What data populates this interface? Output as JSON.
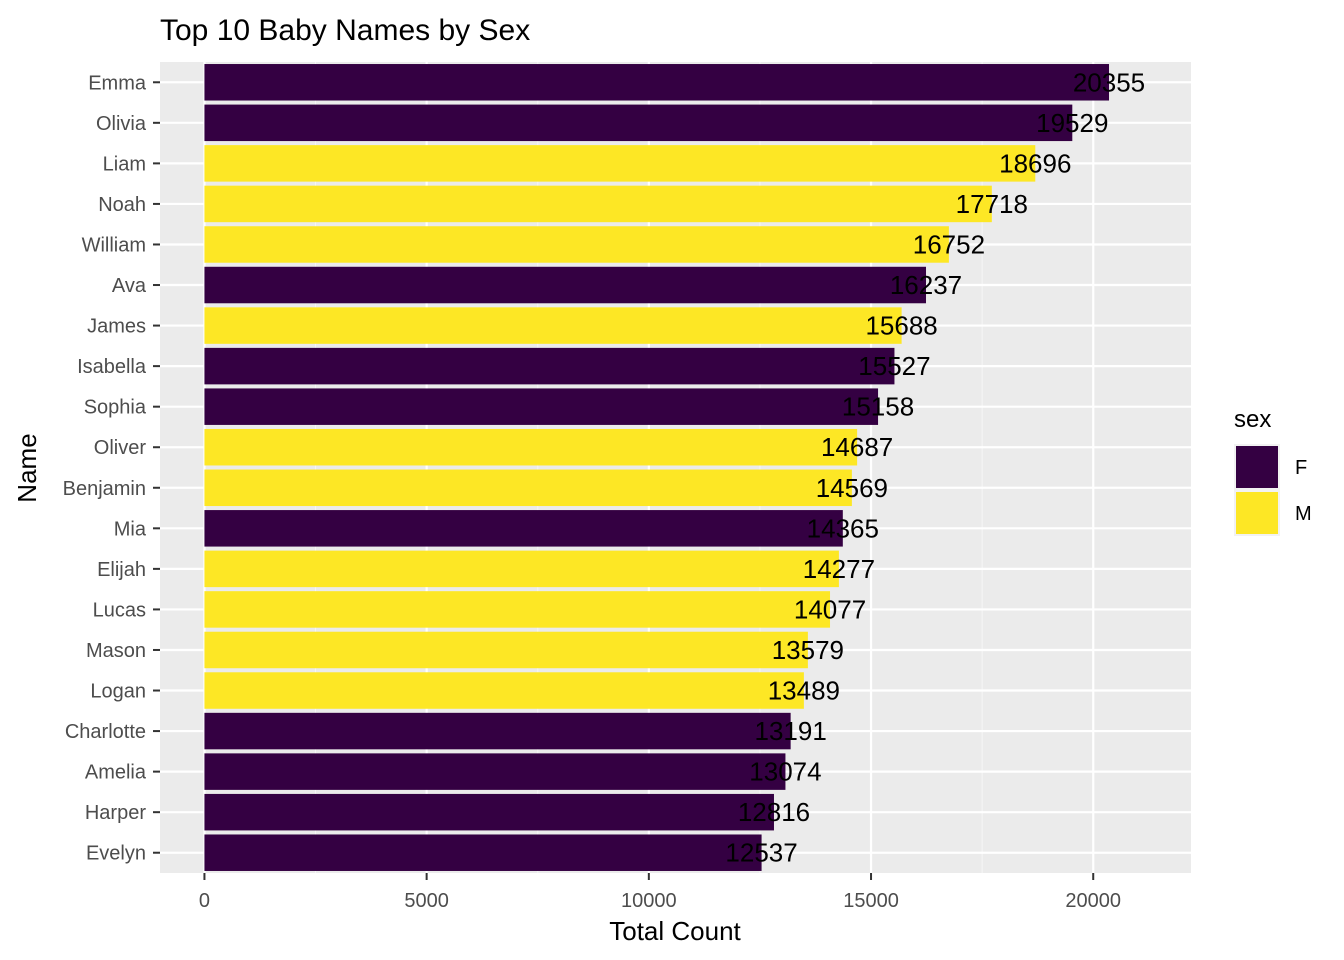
{
  "chart_data": {
    "type": "bar",
    "orientation": "horizontal",
    "title": "Top 10 Baby Names by Sex",
    "xlabel": "Total Count",
    "ylabel": "Name",
    "xlim": [
      -1000,
      22200
    ],
    "x_ticks": [
      0,
      5000,
      10000,
      15000,
      20000
    ],
    "x_tick_labels": [
      "0",
      "5000",
      "10000",
      "15000",
      "20000"
    ],
    "grid": true,
    "legend": {
      "title": "sex",
      "position": "right",
      "entries": [
        {
          "key": "F",
          "label": "F",
          "color": "#340042"
        },
        {
          "key": "M",
          "label": "M",
          "color": "#FDE725"
        }
      ]
    },
    "categories": [
      "Emma",
      "Olivia",
      "Liam",
      "Noah",
      "William",
      "Ava",
      "James",
      "Isabella",
      "Sophia",
      "Oliver",
      "Benjamin",
      "Mia",
      "Elijah",
      "Lucas",
      "Mason",
      "Logan",
      "Charlotte",
      "Amelia",
      "Harper",
      "Evelyn"
    ],
    "values": [
      20355,
      19529,
      18696,
      17718,
      16752,
      16237,
      15688,
      15527,
      15158,
      14687,
      14569,
      14365,
      14277,
      14077,
      13579,
      13489,
      13191,
      13074,
      12816,
      12537
    ],
    "sex": [
      "F",
      "F",
      "M",
      "M",
      "M",
      "F",
      "M",
      "F",
      "F",
      "M",
      "M",
      "F",
      "M",
      "M",
      "M",
      "M",
      "F",
      "F",
      "F",
      "F"
    ],
    "data_labels": [
      "20355",
      "19529",
      "18696",
      "17718",
      "16752",
      "16237",
      "15688",
      "15527",
      "15158",
      "14687",
      "14569",
      "14365",
      "14277",
      "14077",
      "13579",
      "13489",
      "13191",
      "13074",
      "12816",
      "12537"
    ]
  },
  "colors": {
    "panel_background": "#EBEBEB",
    "grid_major": "#FFFFFF",
    "axis_text": "#4D4D4D",
    "tick": "#333333",
    "female": "#340042",
    "male": "#FDE725"
  }
}
